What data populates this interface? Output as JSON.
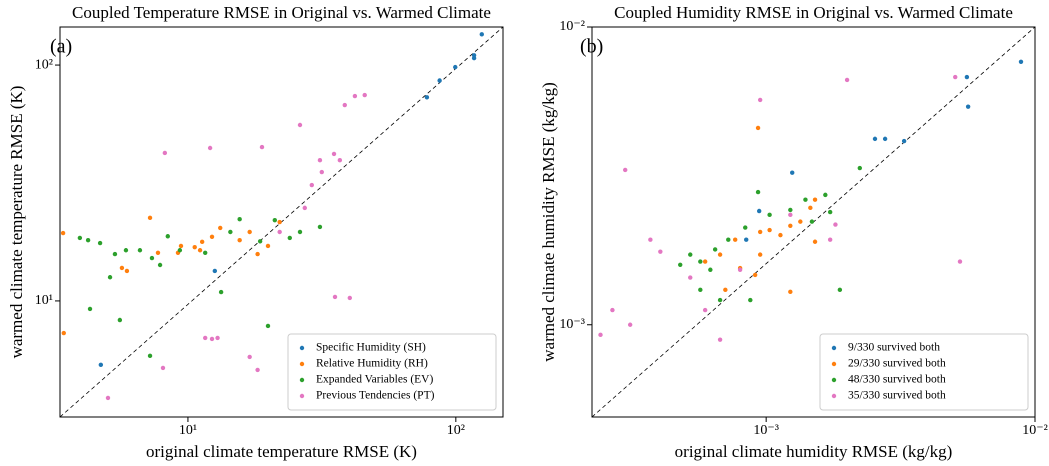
{
  "chart_data": [
    {
      "type": "scatter",
      "title": "Coupled Temperature RMSE in Original vs. Warmed Climate",
      "annotation": "(a)",
      "xlabel": "original climate temperature RMSE (K)",
      "ylabel": "warmed climate temperature RMSE (K)",
      "xscale": "log",
      "yscale": "log",
      "xlim": [
        3.33,
        150
      ],
      "ylim": [
        3.22,
        145
      ],
      "xticks": [
        {
          "value": 10,
          "label": "10¹"
        },
        {
          "value": 100,
          "label": "10²"
        }
      ],
      "yticks": [
        {
          "value": 10,
          "label": "10¹"
        },
        {
          "value": 100,
          "label": "10²"
        }
      ],
      "legend": "lower right",
      "series": [
        {
          "name": "Specific Humidity (SH)",
          "color": "#1f77b4",
          "x": [
            125,
            117,
            117,
            99.5,
            87,
            78,
            12.6,
            4.73
          ],
          "y": [
            135,
            110,
            107,
            98,
            86,
            73,
            13.4,
            5.36
          ]
        },
        {
          "name": "Relative Humidity (RH)",
          "color": "#ff7f0e",
          "x": [
            3.42,
            3.44,
            5.67,
            5.92,
            7.22,
            7.73,
            9.18,
            9.42,
            10.6,
            11.1,
            12.3,
            13.2,
            15.6,
            17.0,
            18.2,
            19.9,
            22.0,
            11.3
          ],
          "y": [
            19.4,
            7.31,
            13.8,
            13.4,
            22.5,
            16.0,
            16.0,
            17.1,
            16.9,
            16.4,
            18.7,
            20.4,
            18.1,
            19.6,
            15.8,
            17.1,
            21.6,
            17.8
          ]
        },
        {
          "name": "Expanded Variables (EV)",
          "color": "#2ca02c",
          "x": [
            3.95,
            4.24,
            4.7,
            5.34,
            5.87,
            6.62,
            7.34,
            7.87,
            8.41,
            5.12,
            4.31,
            7.22,
            5.57,
            9.33,
            11.6,
            14.4,
            15.6,
            18.6,
            21.1,
            24.0,
            26.2,
            13.3,
            19.9,
            31.1
          ],
          "y": [
            18.5,
            18.1,
            17.6,
            15.8,
            16.4,
            16.4,
            15.2,
            14.2,
            18.8,
            12.6,
            9.25,
            5.85,
            8.3,
            16.4,
            16.0,
            19.6,
            22.2,
            17.9,
            22.0,
            18.5,
            19.6,
            10.9,
            7.83,
            20.6
          ]
        },
        {
          "name": "Previous Tendencies (PT)",
          "color": "#e377c2",
          "x": [
            5.03,
            8.07,
            11.6,
            12.3,
            12.9,
            17.0,
            18.2,
            24.7,
            28.5,
            35.4,
            8.2,
            12.1,
            18.9,
            26.2,
            31.1,
            35.1,
            38.5,
            42.0,
            45.7,
            36.9,
            40.2,
            22.0,
            27.3,
            29.0,
            31.6
          ],
          "y": [
            3.88,
            5.2,
            6.97,
            6.9,
            6.97,
            5.79,
            5.1,
            5.31,
            6.9,
            10.4,
            42.4,
            44.5,
            44.9,
            55.7,
            39.5,
            42.0,
            67.7,
            73.9,
            74.6,
            39.5,
            10.3,
            19.6,
            24.8,
            31.0,
            35.2
          ]
        }
      ]
    },
    {
      "type": "scatter",
      "title": "Coupled Humidity RMSE in Original vs. Warmed Climate",
      "annotation": "(b)",
      "xlabel": "original climate humidity RMSE (kg/kg)",
      "ylabel": "warmed climate humidity RMSE (kg/kg)",
      "xscale": "log",
      "yscale": "log",
      "xlim": [
        0.000225,
        0.01
      ],
      "ylim": [
        0.00049,
        0.01
      ],
      "xticks": [
        {
          "value": 0.001,
          "label": "10⁻³"
        },
        {
          "value": 0.01,
          "label": "10⁻²"
        }
      ],
      "yticks": [
        {
          "value": 0.001,
          "label": "10⁻³"
        },
        {
          "value": 0.01,
          "label": "10⁻²"
        }
      ],
      "legend": "lower right",
      "series": [
        {
          "name": "9/330 survived both",
          "color": "#1f77b4",
          "x": [
            0.00887,
            0.00558,
            0.00564,
            0.00254,
            0.00277,
            0.00326,
            0.00125,
            0.000942,
            0.000843
          ],
          "y": [
            0.00764,
            0.00679,
            0.0054,
            0.00421,
            0.00421,
            0.00414,
            0.00324,
            0.00241,
            0.00193
          ]
        },
        {
          "name": "29/330 survived both",
          "color": "#ff7f0e",
          "x": [
            0.000933,
            0.000767,
            0.0008,
            0.00095,
            0.00103,
            0.00113,
            0.00123,
            0.00134,
            0.00146,
            0.00152,
            0.000674,
            0.000705,
            0.000593,
            0.00091,
            0.00123,
            0.00152,
            0.00095
          ],
          "y": [
            0.00458,
            0.00193,
            0.00155,
            0.00205,
            0.00208,
            0.002,
            0.00215,
            0.00222,
            0.00247,
            0.00263,
            0.00172,
            0.00131,
            0.00163,
            0.00147,
            0.00129,
            0.0019,
            0.00172
          ]
        },
        {
          "name": "48/330 survived both",
          "color": "#2ca02c",
          "x": [
            0.000479,
            0.000522,
            0.000569,
            0.00062,
            0.000646,
            0.000723,
            0.000836,
            0.000933,
            0.00103,
            0.00123,
            0.0014,
            0.00166,
            0.00223,
            0.00188,
            0.000569,
            0.000674,
            0.000873,
            0.00148,
            0.00173
          ],
          "y": [
            0.00159,
            0.00172,
            0.00163,
            0.00153,
            0.00179,
            0.00193,
            0.00212,
            0.00279,
            0.00234,
            0.00243,
            0.00263,
            0.00273,
            0.00336,
            0.00131,
            0.00131,
            0.00121,
            0.00121,
            0.00222,
            0.00239
          ]
        },
        {
          "name": "35/330 survived both",
          "color": "#e377c2",
          "x": [
            0.000268,
            0.000299,
            0.000312,
            0.000404,
            0.000593,
            0.000674,
            0.00095,
            0.00123,
            0.00181,
            0.002,
            0.00505,
            0.00526,
            0.000242,
            0.000522,
            0.0008,
            0.00173,
            0.000371
          ],
          "y": [
            0.00112,
            0.00331,
            0.001,
            0.00176,
            0.00112,
            0.000891,
            0.00569,
            0.00234,
            0.00217,
            0.00664,
            0.00679,
            0.00163,
            0.000925,
            0.00144,
            0.00153,
            0.00193,
            0.00193
          ]
        }
      ]
    }
  ]
}
